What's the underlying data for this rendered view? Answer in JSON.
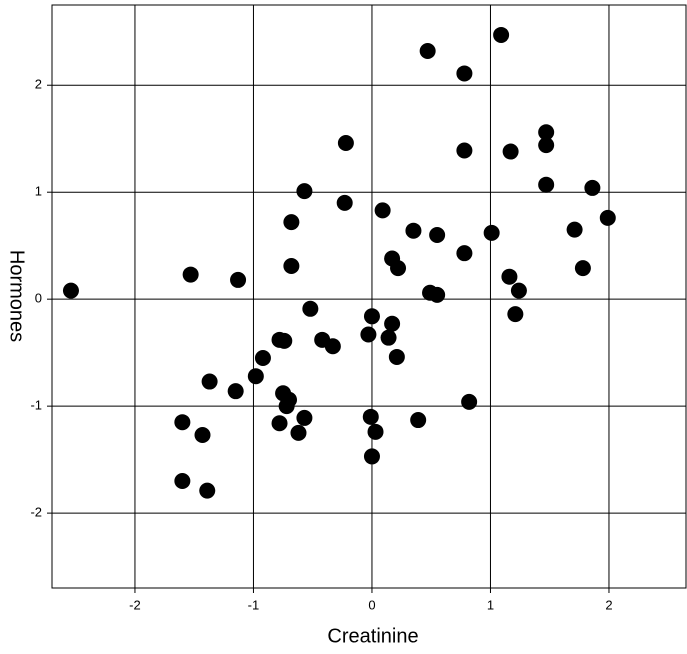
{
  "chart_data": {
    "type": "scatter",
    "x_label": "Creatinine",
    "y_label": "Hormones",
    "xlim": [
      -2.7,
      2.65
    ],
    "ylim": [
      -2.7,
      2.75
    ],
    "xticks": [
      -2,
      -1,
      0,
      1,
      2
    ],
    "yticks": [
      -2,
      -1,
      0,
      1,
      2
    ],
    "grid": true,
    "color": "#000000",
    "x": [
      -2.54,
      -1.53,
      -1.13,
      -1.6,
      -1.43,
      -1.6,
      -1.39,
      -1.37,
      -1.15,
      -0.98,
      -0.92,
      -0.78,
      -0.74,
      -0.75,
      -0.72,
      -0.7,
      -0.78,
      -0.62,
      -0.57,
      -0.68,
      -0.68,
      -0.57,
      -0.52,
      -0.42,
      -0.33,
      -0.23,
      -0.22,
      0.09,
      0.0,
      -0.03,
      0.14,
      0.17,
      0.21,
      0.17,
      0.22,
      0.35,
      0.55,
      -0.01,
      0.03,
      0.0,
      0.39,
      0.49,
      0.55,
      0.47,
      0.78,
      1.09,
      0.78,
      1.17,
      0.78,
      0.82,
      1.01,
      1.16,
      1.24,
      1.21,
      1.47,
      1.47,
      1.47,
      1.86,
      1.71,
      1.78,
      1.99
    ],
    "values": [
      0.08,
      0.23,
      0.18,
      -1.15,
      -1.27,
      -1.7,
      -1.79,
      -0.77,
      -0.86,
      -0.72,
      -0.55,
      -0.38,
      -0.39,
      -0.88,
      -1.0,
      -0.94,
      -1.16,
      -1.25,
      -1.11,
      0.72,
      0.31,
      1.01,
      -0.09,
      -0.38,
      -0.44,
      0.9,
      1.46,
      0.83,
      -0.16,
      -0.33,
      -0.36,
      -0.23,
      -0.54,
      0.38,
      0.29,
      0.64,
      0.6,
      -1.1,
      -1.24,
      -1.47,
      -1.13,
      0.06,
      0.04,
      2.32,
      2.11,
      2.47,
      1.39,
      1.38,
      0.43,
      -0.96,
      0.62,
      0.21,
      0.08,
      -0.14,
      1.56,
      1.44,
      1.07,
      1.04,
      0.65,
      0.29,
      0.76
    ]
  }
}
